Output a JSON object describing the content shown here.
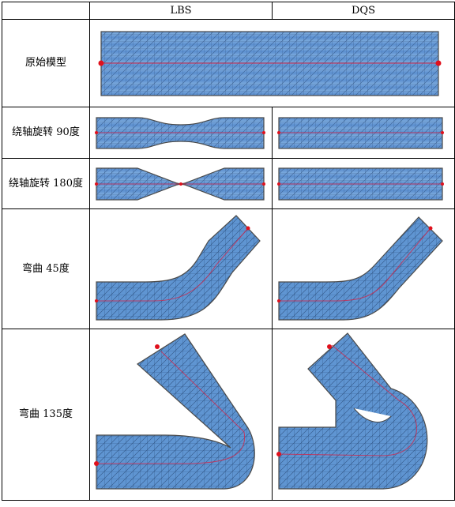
{
  "columns": {
    "blank": "",
    "lbs": "LBS",
    "dqs": "DQS"
  },
  "rows": [
    {
      "label": "原始模型"
    },
    {
      "label": "绕轴旋转 90度"
    },
    {
      "label": "绕轴旋转 180度"
    },
    {
      "label": "弯曲 45度"
    },
    {
      "label": "弯曲 135度"
    }
  ],
  "colors": {
    "mesh_fill": "#5b8fcf",
    "mesh_line": "#1f3f6a",
    "bone": "#d0264a",
    "joint": "#e0101c",
    "outline": "#4a4a4a"
  }
}
